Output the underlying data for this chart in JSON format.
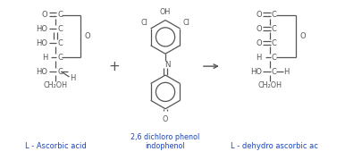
{
  "bg_color": "#ffffff",
  "text_color": "#555555",
  "blue_color": "#1a44bb",
  "fig_width": 3.86,
  "fig_height": 1.79,
  "dpi": 100,
  "label1": "L - Ascorbic acid",
  "label2": "2,6 dichloro phenol\nindophenol",
  "label3": "L - dehydro ascorbic ac"
}
